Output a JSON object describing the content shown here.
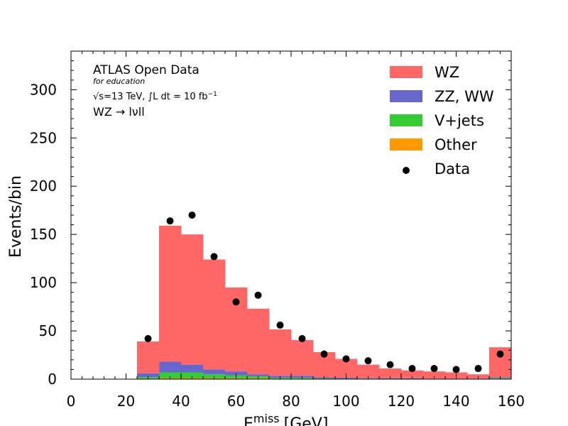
{
  "chart_data": {
    "type": "bar",
    "stacked": true,
    "bin_edges": [
      0,
      8,
      16,
      24,
      32,
      40,
      48,
      56,
      64,
      72,
      80,
      88,
      96,
      104,
      112,
      120,
      128,
      136,
      144,
      152,
      160
    ],
    "series": [
      {
        "name": "Other",
        "color": "#ff9900",
        "values": [
          0,
          0,
          0,
          0.5,
          1,
          1,
          1,
          1,
          1,
          0.5,
          0.5,
          0.3,
          0.2,
          0.2,
          0.1,
          0.1,
          0.1,
          0.1,
          0.1,
          0.5
        ]
      },
      {
        "name": "V+jets",
        "color": "#33cc33",
        "values": [
          0,
          0,
          0,
          1.5,
          6,
          6,
          4,
          3,
          2,
          1,
          1,
          0.5,
          0.3,
          0.3,
          0.2,
          0.2,
          0.1,
          0.1,
          0.1,
          0.5
        ]
      },
      {
        "name": "ZZ, WW",
        "color": "#6666cc",
        "values": [
          0,
          0,
          0,
          4,
          11,
          8,
          5,
          4,
          2,
          2,
          2,
          1,
          1,
          0.5,
          0.5,
          0.5,
          0.3,
          0.3,
          0.3,
          1
        ]
      },
      {
        "name": "WZ",
        "color": "#ff6666",
        "values": [
          0,
          0,
          0,
          33,
          141,
          135,
          114,
          87,
          68,
          48,
          37,
          26.2,
          19.5,
          14,
          10.2,
          8.2,
          7.5,
          6.5,
          4.5,
          31
        ]
      }
    ],
    "data_points": {
      "name": "Data",
      "x": [
        28,
        36,
        44,
        52,
        60,
        68,
        76,
        84,
        92,
        100,
        108,
        116,
        124,
        132,
        140,
        148,
        156
      ],
      "y": [
        42,
        164,
        170,
        127,
        80,
        87,
        56,
        42,
        26,
        21,
        19,
        15,
        11,
        11,
        10,
        11,
        26
      ]
    },
    "legend_order": [
      "WZ",
      "ZZ, WW",
      "V+jets",
      "Other",
      "Data"
    ],
    "legend_position": "top-right",
    "xlim": [
      0,
      160
    ],
    "ylim": [
      0,
      340
    ],
    "x_ticks": [
      0,
      20,
      40,
      60,
      80,
      100,
      120,
      140,
      160
    ],
    "y_ticks": [
      0,
      50,
      100,
      150,
      200,
      250,
      300
    ],
    "ylabel": "Events/bin",
    "xlabel_main": "E",
    "xlabel_sup": "miss",
    "xlabel_unit": "[GeV]",
    "grid": false
  },
  "annotation": {
    "title": "ATLAS Open Data",
    "subtitle": "for education",
    "energy_prefix": "=13 TeV,",
    "energy_sqrt": "√s",
    "lumi_integral": "∫",
    "lumi_text": "L dt = 10 fb",
    "lumi_exp": "−1",
    "process": "WZ → lνll"
  }
}
